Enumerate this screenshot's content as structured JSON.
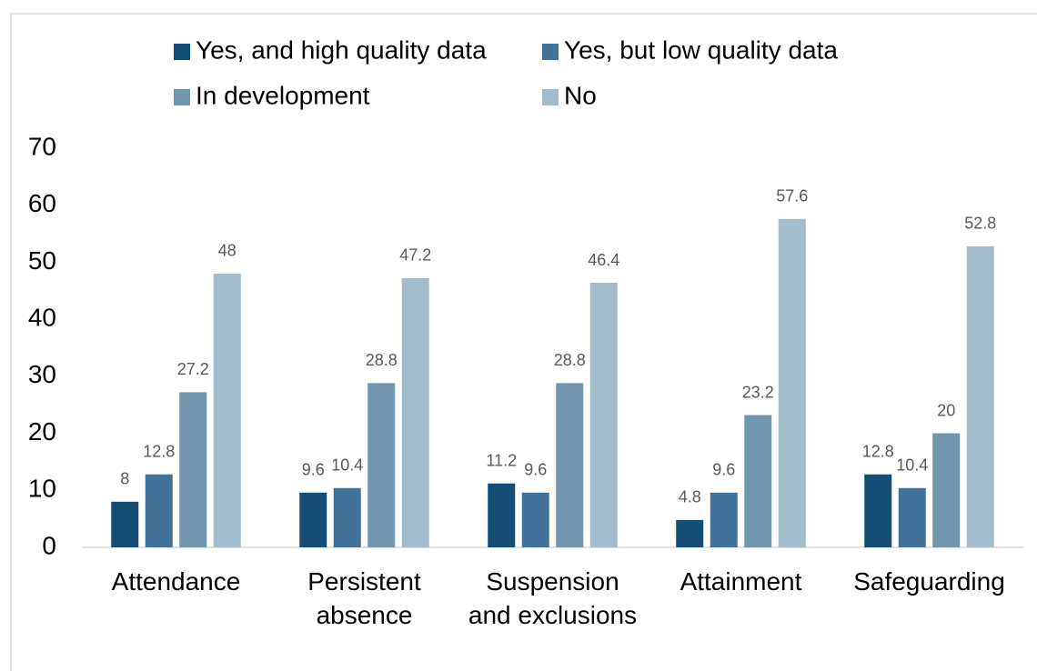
{
  "chart_data": {
    "type": "bar",
    "categories": [
      "Attendance",
      "Persistent absence",
      "Suspension and exclusions",
      "Attainment",
      "Safeguarding"
    ],
    "series": [
      {
        "name": "Yes, and high quality data",
        "color": "#154e75",
        "values": [
          8,
          9.6,
          11.2,
          4.8,
          12.8
        ]
      },
      {
        "name": "Yes, but low quality data",
        "color": "#41739a",
        "values": [
          12.8,
          10.4,
          9.6,
          9.6,
          10.4
        ]
      },
      {
        "name": "In development",
        "color": "#7096b0",
        "values": [
          27.2,
          28.8,
          28.8,
          23.2,
          20
        ]
      },
      {
        "name": "No",
        "color": "#a3bccc",
        "values": [
          48,
          47.2,
          46.4,
          57.6,
          52.8
        ]
      }
    ],
    "ylim": [
      0,
      70
    ],
    "yticks": [
      0,
      10,
      20,
      30,
      40,
      50,
      60,
      70
    ],
    "grid": false,
    "legend": "top"
  }
}
